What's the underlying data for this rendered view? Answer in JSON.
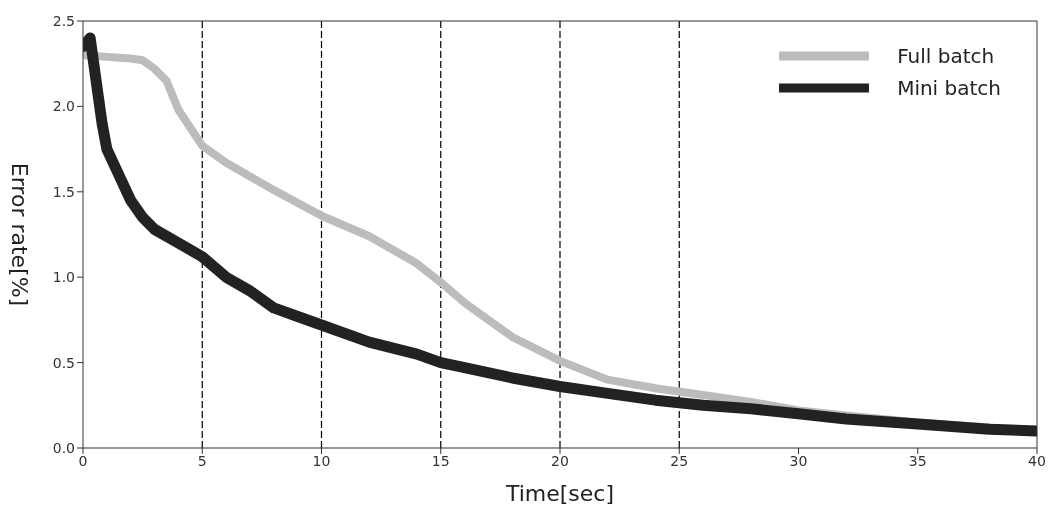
{
  "chart_data": {
    "type": "line",
    "xlabel": "Time[sec]",
    "ylabel": "Error rate[%]",
    "xlim": [
      0,
      40
    ],
    "xticks": [
      0,
      5,
      10,
      15,
      20,
      25,
      30,
      35,
      40
    ],
    "ylim": [
      0,
      2.5
    ],
    "yticks": [
      {
        "value": 0,
        "label": "0.0"
      },
      {
        "value": 0.5,
        "label": "0.5"
      },
      {
        "value": 1,
        "label": "1.0"
      },
      {
        "value": 1.5,
        "label": "1.5"
      },
      {
        "value": 2,
        "label": "2.0"
      },
      {
        "value": 2.5,
        "label": "2.5"
      }
    ],
    "legend": "top right",
    "line_style": "solid",
    "ref_lines": [
      {
        "axis": "x",
        "value": 5,
        "color": "#000000",
        "line_style": "dashed"
      },
      {
        "axis": "x",
        "value": 10,
        "color": "#000000",
        "line_style": "dashed"
      },
      {
        "axis": "x",
        "value": 15,
        "color": "#000000",
        "line_style": "dashed"
      },
      {
        "axis": "x",
        "value": 20,
        "color": "#000000",
        "line_style": "dashed"
      },
      {
        "axis": "x",
        "value": 25,
        "color": "#000000",
        "line_style": "dashed"
      }
    ],
    "series": [
      {
        "name": "Full batch",
        "color": "#bcbcbc",
        "x": [
          0,
          1,
          2,
          2.5,
          3,
          3.5,
          4,
          5,
          6,
          8,
          10,
          12,
          14,
          15,
          16,
          18,
          20,
          22,
          24,
          26,
          28,
          30,
          32,
          35,
          38,
          40
        ],
        "values": [
          2.3,
          2.29,
          2.28,
          2.27,
          2.22,
          2.15,
          1.98,
          1.77,
          1.67,
          1.51,
          1.36,
          1.24,
          1.08,
          0.97,
          0.85,
          0.65,
          0.51,
          0.4,
          0.35,
          0.31,
          0.27,
          0.22,
          0.19,
          0.15,
          0.12,
          0.1
        ]
      },
      {
        "name": "Mini batch",
        "color": "#222222",
        "x": [
          0,
          0.3,
          0.5,
          0.8,
          1,
          1.5,
          2,
          2.5,
          3,
          4,
          5,
          6,
          7,
          8,
          9,
          10,
          12,
          14,
          15,
          16,
          18,
          20,
          22,
          24,
          26,
          28,
          30,
          32,
          35,
          38,
          40
        ],
        "values": [
          2.35,
          2.4,
          2.2,
          1.9,
          1.75,
          1.6,
          1.45,
          1.35,
          1.28,
          1.2,
          1.12,
          1.0,
          0.92,
          0.82,
          0.77,
          0.72,
          0.62,
          0.55,
          0.5,
          0.47,
          0.41,
          0.36,
          0.32,
          0.28,
          0.25,
          0.23,
          0.2,
          0.17,
          0.14,
          0.11,
          0.1
        ]
      }
    ]
  }
}
